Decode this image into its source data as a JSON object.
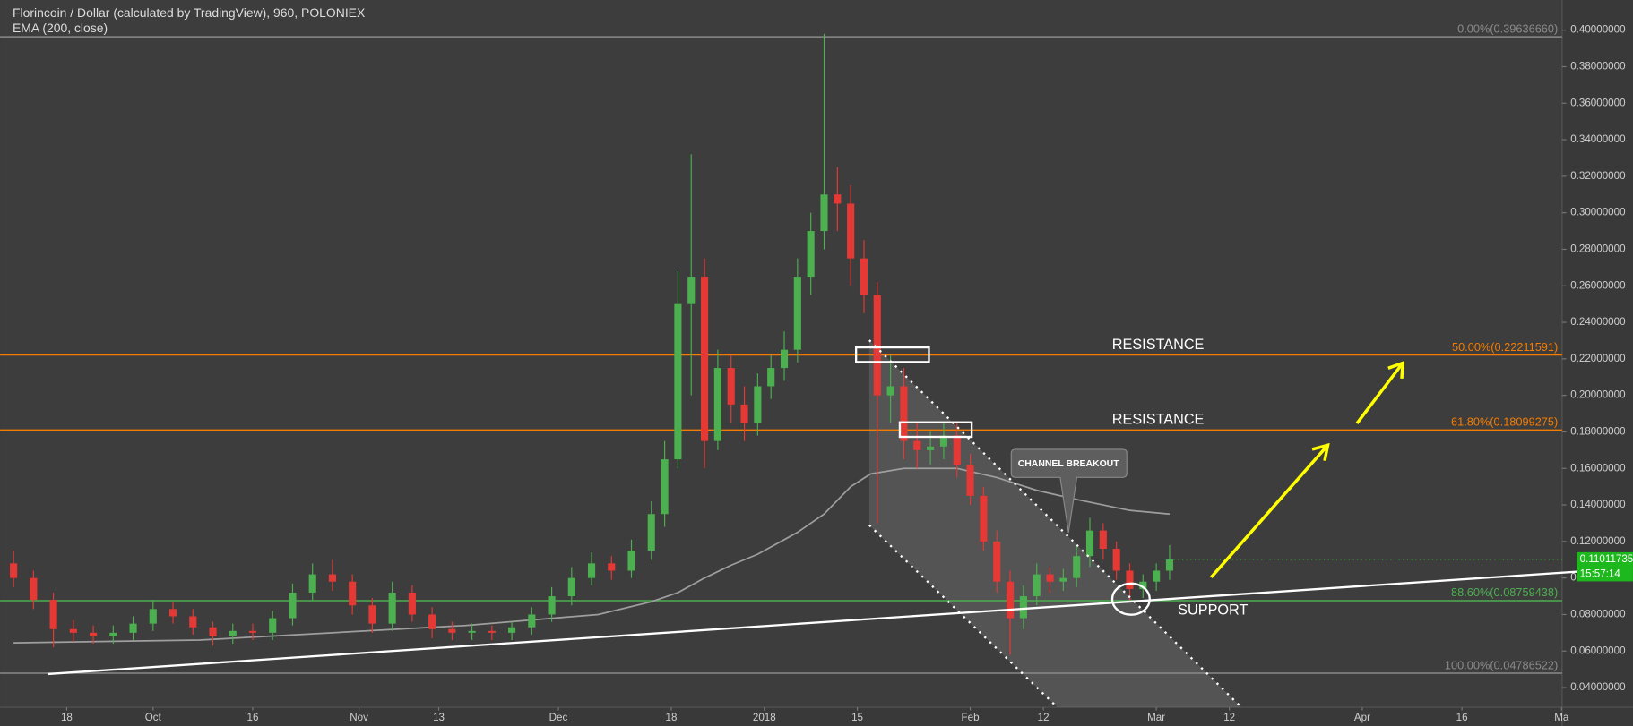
{
  "chart_data": {
    "type": "candlestick",
    "title": "Florincoin / Dollar (calculated by TradingView), 960, POLONIEX",
    "subtitle": "EMA (200, close)",
    "colors": {
      "up": "#4caf50",
      "down": "#e53935",
      "background": "#3d3d3d",
      "axis_background": "#393939"
    },
    "grid": false,
    "xlim": [
      -10.03,
      225.08
    ],
    "ylim": [
      0.0292,
      0.4165
    ],
    "xticks": [
      {
        "value": 0,
        "label": "18"
      },
      {
        "value": 13,
        "label": "Oct"
      },
      {
        "value": 28,
        "label": "16"
      },
      {
        "value": 44,
        "label": "Nov"
      },
      {
        "value": 56,
        "label": "13"
      },
      {
        "value": 74,
        "label": "Dec"
      },
      {
        "value": 91,
        "label": "18"
      },
      {
        "value": 105,
        "label": "2018"
      },
      {
        "value": 119,
        "label": "15"
      },
      {
        "value": 136,
        "label": "Feb"
      },
      {
        "value": 147,
        "label": "12"
      },
      {
        "value": 164,
        "label": "Mar"
      },
      {
        "value": 175,
        "label": "12"
      },
      {
        "value": 195,
        "label": "Apr"
      },
      {
        "value": 210,
        "label": "16"
      },
      {
        "value": 225,
        "label": "Ma"
      }
    ],
    "yticks": [
      {
        "value": 0.04,
        "label": "0.04000000"
      },
      {
        "value": 0.06,
        "label": "0.06000000"
      },
      {
        "value": 0.08,
        "label": "0.08000000"
      },
      {
        "value": 0.1,
        "label": "0.10000000"
      },
      {
        "value": 0.12,
        "label": "0.12000000"
      },
      {
        "value": 0.14,
        "label": "0.14000000"
      },
      {
        "value": 0.16,
        "label": "0.16000000"
      },
      {
        "value": 0.18,
        "label": "0.18000000"
      },
      {
        "value": 0.2,
        "label": "0.20000000"
      },
      {
        "value": 0.22,
        "label": "0.22000000"
      },
      {
        "value": 0.24,
        "label": "0.24000000"
      },
      {
        "value": 0.26,
        "label": "0.26000000"
      },
      {
        "value": 0.28,
        "label": "0.28000000"
      },
      {
        "value": 0.3,
        "label": "0.30000000"
      },
      {
        "value": 0.32,
        "label": "0.32000000"
      },
      {
        "value": 0.34,
        "label": "0.34000000"
      },
      {
        "value": 0.36,
        "label": "0.36000000"
      },
      {
        "value": 0.38,
        "label": "0.38000000"
      },
      {
        "value": 0.4,
        "label": "0.40000000"
      }
    ],
    "candles": {
      "x": [
        -8,
        -5,
        -2,
        1,
        4,
        7,
        10,
        13,
        16,
        19,
        22,
        25,
        28,
        31,
        34,
        37,
        40,
        43,
        46,
        49,
        52,
        55,
        58,
        61,
        64,
        67,
        70,
        73,
        76,
        79,
        82,
        85,
        88,
        90,
        92,
        94,
        96,
        98,
        100,
        102,
        104,
        106,
        108,
        110,
        112,
        114,
        116,
        118,
        120,
        122,
        124,
        126,
        128,
        130,
        132,
        134,
        136,
        138,
        140,
        142,
        144,
        146,
        148,
        150,
        152,
        154,
        156,
        158,
        160,
        162,
        164,
        166
      ],
      "open": [
        0.108,
        0.1,
        0.088,
        0.072,
        0.07,
        0.068,
        0.07,
        0.075,
        0.083,
        0.079,
        0.073,
        0.068,
        0.071,
        0.07,
        0.078,
        0.092,
        0.102,
        0.098,
        0.085,
        0.075,
        0.092,
        0.08,
        0.072,
        0.07,
        0.071,
        0.07,
        0.073,
        0.08,
        0.09,
        0.1,
        0.108,
        0.104,
        0.115,
        0.135,
        0.165,
        0.25,
        0.265,
        0.175,
        0.215,
        0.195,
        0.185,
        0.205,
        0.215,
        0.225,
        0.265,
        0.29,
        0.31,
        0.305,
        0.275,
        0.255,
        0.2,
        0.205,
        0.175,
        0.17,
        0.172,
        0.178,
        0.162,
        0.145,
        0.12,
        0.098,
        0.078,
        0.09,
        0.102,
        0.098,
        0.1,
        0.112,
        0.126,
        0.116,
        0.104,
        0.094,
        0.098,
        0.104
      ],
      "high": [
        0.115,
        0.104,
        0.092,
        0.077,
        0.074,
        0.074,
        0.079,
        0.088,
        0.087,
        0.083,
        0.076,
        0.075,
        0.075,
        0.082,
        0.097,
        0.108,
        0.11,
        0.102,
        0.089,
        0.098,
        0.096,
        0.084,
        0.076,
        0.075,
        0.074,
        0.076,
        0.084,
        0.095,
        0.106,
        0.114,
        0.112,
        0.121,
        0.142,
        0.175,
        0.268,
        0.332,
        0.275,
        0.225,
        0.222,
        0.205,
        0.212,
        0.222,
        0.235,
        0.275,
        0.3,
        0.398,
        0.325,
        0.315,
        0.285,
        0.262,
        0.222,
        0.215,
        0.185,
        0.18,
        0.185,
        0.186,
        0.168,
        0.15,
        0.126,
        0.104,
        0.096,
        0.108,
        0.106,
        0.105,
        0.118,
        0.133,
        0.13,
        0.12,
        0.108,
        0.102,
        0.108,
        0.118
      ],
      "low": [
        0.095,
        0.083,
        0.062,
        0.065,
        0.064,
        0.064,
        0.066,
        0.071,
        0.075,
        0.069,
        0.063,
        0.064,
        0.066,
        0.066,
        0.074,
        0.088,
        0.093,
        0.08,
        0.07,
        0.071,
        0.076,
        0.067,
        0.066,
        0.066,
        0.066,
        0.066,
        0.069,
        0.076,
        0.085,
        0.096,
        0.099,
        0.1,
        0.11,
        0.128,
        0.16,
        0.2,
        0.16,
        0.17,
        0.185,
        0.175,
        0.178,
        0.198,
        0.208,
        0.218,
        0.255,
        0.28,
        0.29,
        0.26,
        0.245,
        0.13,
        0.185,
        0.165,
        0.16,
        0.162,
        0.165,
        0.155,
        0.14,
        0.115,
        0.092,
        0.058,
        0.072,
        0.085,
        0.092,
        0.093,
        0.095,
        0.106,
        0.11,
        0.099,
        0.088,
        0.089,
        0.093,
        0.099
      ],
      "close": [
        0.1,
        0.088,
        0.072,
        0.07,
        0.068,
        0.07,
        0.075,
        0.083,
        0.079,
        0.073,
        0.068,
        0.071,
        0.07,
        0.078,
        0.092,
        0.102,
        0.098,
        0.085,
        0.075,
        0.092,
        0.08,
        0.072,
        0.07,
        0.071,
        0.07,
        0.073,
        0.08,
        0.09,
        0.1,
        0.108,
        0.104,
        0.115,
        0.135,
        0.165,
        0.25,
        0.265,
        0.175,
        0.215,
        0.195,
        0.185,
        0.205,
        0.215,
        0.225,
        0.265,
        0.29,
        0.31,
        0.305,
        0.275,
        0.255,
        0.2,
        0.205,
        0.175,
        0.17,
        0.172,
        0.178,
        0.162,
        0.145,
        0.12,
        0.098,
        0.078,
        0.09,
        0.102,
        0.098,
        0.1,
        0.112,
        0.126,
        0.116,
        0.104,
        0.094,
        0.098,
        0.104,
        0.1101
      ]
    },
    "ema": {
      "color": "#9e9e9e",
      "x": [
        -8,
        20,
        40,
        60,
        80,
        88,
        92,
        96,
        100,
        104,
        110,
        114,
        118,
        121,
        126,
        134,
        140,
        146,
        152,
        160,
        166
      ],
      "values": [
        0.0645,
        0.066,
        0.07,
        0.074,
        0.08,
        0.087,
        0.092,
        0.1,
        0.107,
        0.113,
        0.125,
        0.135,
        0.15,
        0.157,
        0.16,
        0.16,
        0.155,
        0.148,
        0.143,
        0.137,
        0.135
      ]
    },
    "fib_levels": [
      {
        "label": "0.00%(0.39636660)",
        "value": 0.3963666,
        "color": "#8a8a8a"
      },
      {
        "label": "50.00%(0.22211591)",
        "value": 0.22211591,
        "color": "#f57c00"
      },
      {
        "label": "61.80%(0.18099275)",
        "value": 0.18099275,
        "color": "#f57c00"
      },
      {
        "label": "88.60%(0.08759438)",
        "value": 0.08759438,
        "color": "#4caf50"
      },
      {
        "label": "100.00%(0.04786522)",
        "value": 0.04786522,
        "color": "#8a8a8a"
      }
    ],
    "trendlines": [
      {
        "x": [
          -2.82,
          235.7
        ],
        "values": [
          0.0474,
          0.1055
        ],
        "color": "#ffffff",
        "dotted": false
      },
      {
        "x": [
          120.8,
          176.8
        ],
        "values": [
          0.2302,
          0.0292
        ],
        "color": "#ffffff",
        "dotted": true
      },
      {
        "x": [
          120.8,
          149.1
        ],
        "values": [
          0.1289,
          0.0292
        ],
        "color": "#ffffff",
        "dotted": true
      }
    ],
    "last_price": {
      "value": 0.11011735,
      "label": "0.11011735",
      "countdown": "15:57:14",
      "color": "#1db81d"
    },
    "annotations": [
      "RESISTANCE",
      "RESISTANCE",
      "SUPPORT",
      "CHANNEL BREAKOUT"
    ]
  }
}
